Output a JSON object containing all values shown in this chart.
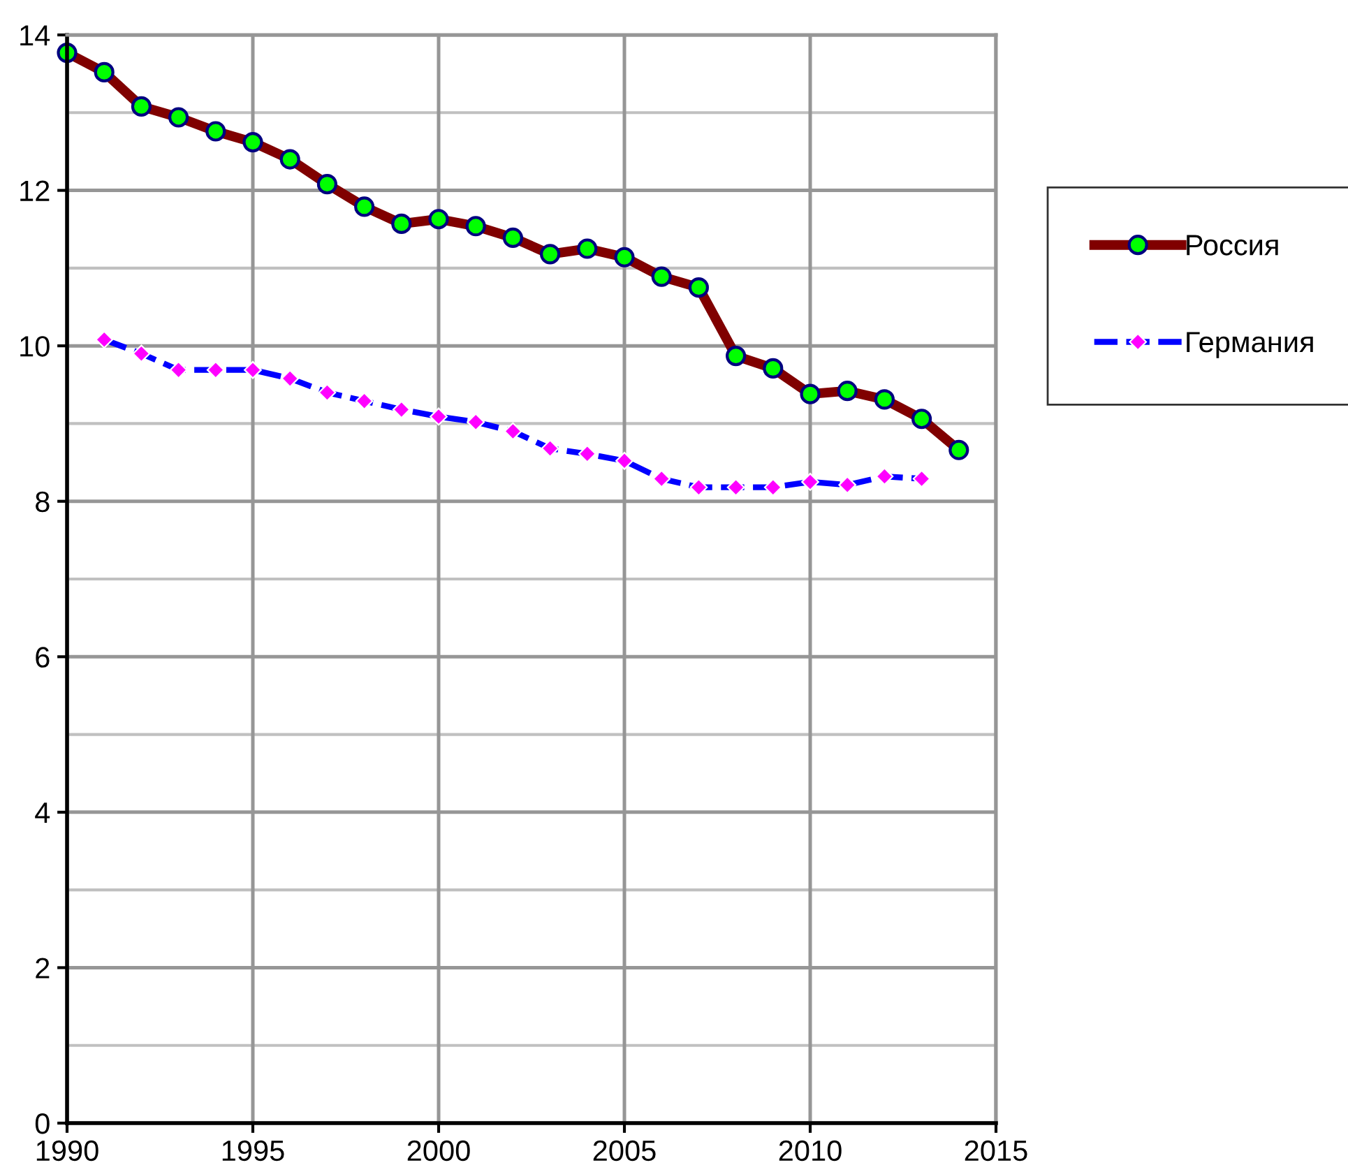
{
  "chart_data": {
    "type": "line",
    "x": [
      1990,
      1991,
      1992,
      1993,
      1994,
      1995,
      1996,
      1997,
      1998,
      1999,
      2000,
      2001,
      2002,
      2003,
      2004,
      2005,
      2006,
      2007,
      2008,
      2009,
      2010,
      2011,
      2012,
      2013,
      2014
    ],
    "series": [
      {
        "name": "Россия",
        "color": "#800000",
        "marker": "circle",
        "line_style": "solid",
        "values": [
          13.77,
          13.52,
          13.08,
          12.94,
          12.76,
          12.62,
          12.4,
          12.08,
          11.79,
          11.57,
          11.63,
          11.54,
          11.39,
          11.18,
          11.25,
          11.14,
          10.89,
          10.75,
          9.87,
          9.71,
          9.38,
          9.42,
          9.31,
          9.06,
          8.66
        ]
      },
      {
        "name": "Германия",
        "color": "#0000ff",
        "marker": "diamond",
        "line_style": "dashed",
        "values": [
          null,
          10.08,
          9.9,
          9.69,
          9.69,
          9.69,
          9.58,
          9.4,
          9.29,
          9.18,
          9.09,
          9.02,
          8.9,
          8.68,
          8.61,
          8.52,
          8.29,
          8.18,
          8.18,
          8.18,
          8.25,
          8.21,
          8.32,
          8.29,
          null
        ]
      }
    ],
    "xlim": [
      1990,
      2015
    ],
    "xticks": [
      1990,
      1995,
      2000,
      2005,
      2010,
      2015
    ],
    "ylim": [
      0,
      14
    ],
    "yticks": [
      0,
      2,
      4,
      6,
      8,
      10,
      12,
      14
    ],
    "grid": true,
    "legend": "right"
  }
}
